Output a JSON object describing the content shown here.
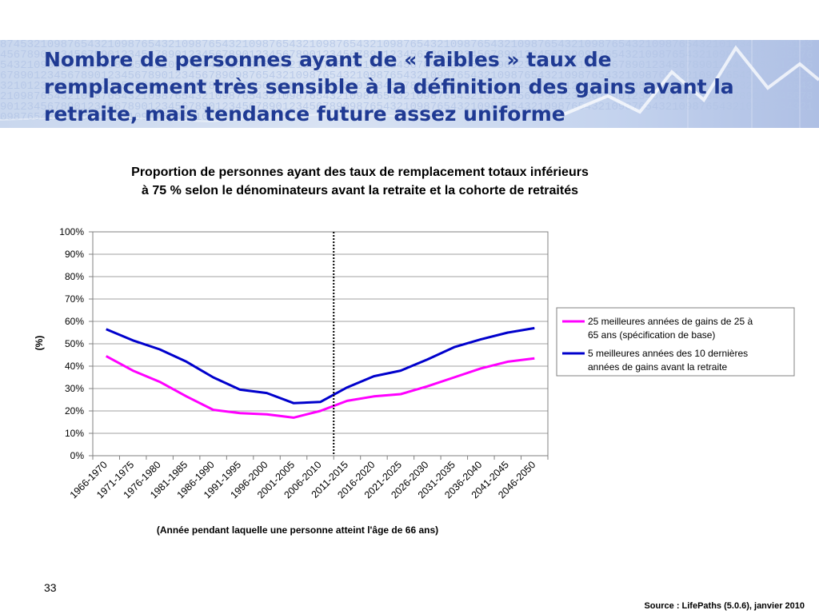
{
  "slide": {
    "title": "Nombre de personnes ayant de « faibles » taux de remplacement très sensible à la définition des gains avant la retraite, mais tendance future assez uniforme",
    "page_number": "33",
    "source": "Source : LifePaths  (5.0.6), janvier 2010"
  },
  "chart_data": {
    "type": "line",
    "title": "Proportion de personnes ayant des taux de remplacement totaux inférieurs à 75 % selon le dénominateurs avant la retraite et la cohorte de retraités",
    "xlabel": "(Année pendant laquelle une personne atteint l'âge de 66 ans)",
    "ylabel": "(%)",
    "ylim": [
      0,
      100
    ],
    "yticks": [
      "0%",
      "10%",
      "20%",
      "30%",
      "40%",
      "50%",
      "60%",
      "70%",
      "80%",
      "90%",
      "100%"
    ],
    "categories": [
      "1966-1970",
      "1971-1975",
      "1976-1980",
      "1981-1985",
      "1986-1990",
      "1991-1995",
      "1996-2000",
      "2001-2005",
      "2006-2010",
      "2011-2015",
      "2016-2020",
      "2021-2025",
      "2026-2030",
      "2031-2035",
      "2036-2040",
      "2041-2045",
      "2046-2050"
    ],
    "divider_category": "2011-2015",
    "grid": true,
    "legend_position": "right",
    "series": [
      {
        "name": "25 meilleures années de gains de 25 à 65 ans (spécification de base)",
        "color": "#ff00ff",
        "values": [
          44.5,
          38,
          33,
          26.5,
          20.5,
          19,
          18.5,
          17,
          20,
          24.5,
          26.5,
          27.5,
          31,
          35,
          39,
          42,
          43.5
        ]
      },
      {
        "name": "5 meilleures années des 10 dernières années de gains avant la retraite",
        "color": "#0000cc",
        "values": [
          56.5,
          51.5,
          47.5,
          42,
          35,
          29.5,
          28,
          23.5,
          24,
          30.5,
          35.5,
          38,
          43,
          48.5,
          52,
          55,
          57
        ]
      }
    ]
  }
}
